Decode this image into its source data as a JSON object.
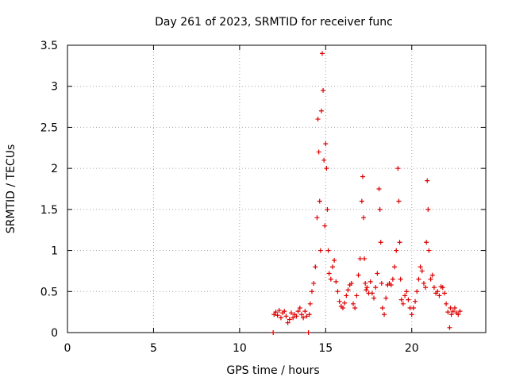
{
  "chart_data": {
    "type": "scatter",
    "title": "Day 261 of 2023, SRMTID for receiver func",
    "xlabel": "GPS time / hours",
    "ylabel": "SRMTID / TECUs",
    "xlim": [
      0,
      24.3
    ],
    "ylim": [
      0,
      3.5
    ],
    "xticks": [
      0,
      5,
      10,
      15,
      20
    ],
    "yticks": [
      0,
      0.5,
      1,
      1.5,
      2,
      2.5,
      3,
      3.5
    ],
    "ytick_labels": [
      "0",
      "0.5",
      "1",
      "1.5",
      "2",
      "2.5",
      "3",
      "3.5"
    ],
    "grid": true,
    "marker": "+",
    "color": "#dd0000",
    "series": [
      {
        "name": "SRMTID",
        "x": [
          11.95,
          12.0,
          12.1,
          12.2,
          12.3,
          12.4,
          12.5,
          12.6,
          12.7,
          12.8,
          12.9,
          13.0,
          13.1,
          13.2,
          13.3,
          13.4,
          13.5,
          13.6,
          13.7,
          13.8,
          13.9,
          14.0,
          14.05,
          14.1,
          14.2,
          14.3,
          14.4,
          14.5,
          14.55,
          14.6,
          14.65,
          14.7,
          14.75,
          14.8,
          14.85,
          14.9,
          14.95,
          15.0,
          15.05,
          15.1,
          15.15,
          15.2,
          15.3,
          15.4,
          15.5,
          15.6,
          15.7,
          15.8,
          15.9,
          16.0,
          16.1,
          16.2,
          16.3,
          16.4,
          16.5,
          16.6,
          16.7,
          16.8,
          16.9,
          17.0,
          17.1,
          17.15,
          17.2,
          17.25,
          17.3,
          17.35,
          17.4,
          17.5,
          17.6,
          17.7,
          17.8,
          17.9,
          18.0,
          18.1,
          18.15,
          18.2,
          18.25,
          18.3,
          18.4,
          18.5,
          18.6,
          18.7,
          18.8,
          18.9,
          19.0,
          19.1,
          19.2,
          19.25,
          19.3,
          19.35,
          19.4,
          19.5,
          19.6,
          19.7,
          19.8,
          19.9,
          20.0,
          20.1,
          20.2,
          20.3,
          20.4,
          20.5,
          20.6,
          20.7,
          20.8,
          20.85,
          20.9,
          20.95,
          21.0,
          21.1,
          21.2,
          21.3,
          21.4,
          21.5,
          21.6,
          21.7,
          21.8,
          21.9,
          22.0,
          22.1,
          22.2,
          22.25,
          22.3,
          22.4,
          22.5,
          22.6,
          22.7,
          22.8
        ],
        "y": [
          0.0,
          0.22,
          0.25,
          0.21,
          0.27,
          0.18,
          0.24,
          0.26,
          0.2,
          0.12,
          0.16,
          0.24,
          0.18,
          0.22,
          0.2,
          0.26,
          0.3,
          0.22,
          0.18,
          0.26,
          0.2,
          0.0,
          0.22,
          0.35,
          0.5,
          0.6,
          0.8,
          1.4,
          2.6,
          2.2,
          1.6,
          1.0,
          2.7,
          3.4,
          2.95,
          2.1,
          1.3,
          2.3,
          2.0,
          1.5,
          1.0,
          0.72,
          0.65,
          0.8,
          0.88,
          0.62,
          0.5,
          0.38,
          0.32,
          0.3,
          0.36,
          0.45,
          0.52,
          0.58,
          0.6,
          0.35,
          0.3,
          0.45,
          0.7,
          0.9,
          1.6,
          1.9,
          1.4,
          0.9,
          0.6,
          0.52,
          0.55,
          0.48,
          0.62,
          0.48,
          0.42,
          0.55,
          0.72,
          1.75,
          1.5,
          1.1,
          0.6,
          0.3,
          0.22,
          0.42,
          0.58,
          0.6,
          0.58,
          0.65,
          0.8,
          1.0,
          2.0,
          1.6,
          1.1,
          0.65,
          0.4,
          0.35,
          0.45,
          0.5,
          0.4,
          0.3,
          0.22,
          0.3,
          0.38,
          0.5,
          0.65,
          0.8,
          0.75,
          0.6,
          0.55,
          1.1,
          1.85,
          1.5,
          1.0,
          0.65,
          0.7,
          0.55,
          0.48,
          0.5,
          0.45,
          0.56,
          0.55,
          0.48,
          0.35,
          0.25,
          0.06,
          0.3,
          0.22,
          0.26,
          0.3,
          0.24,
          0.22,
          0.26
        ]
      }
    ]
  }
}
